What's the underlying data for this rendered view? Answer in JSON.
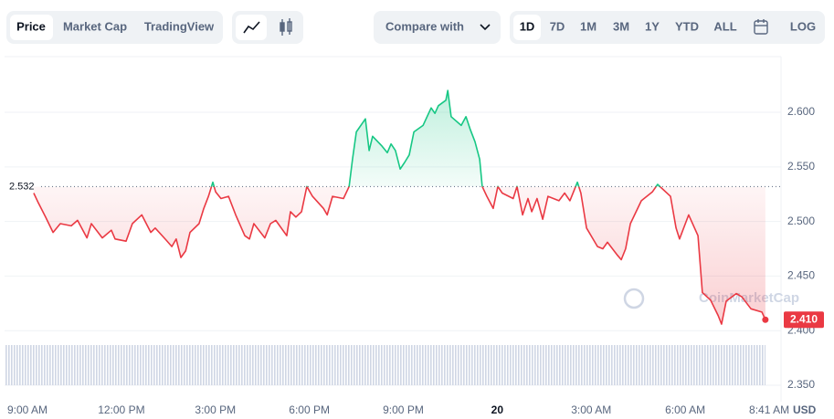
{
  "toolbar": {
    "view_tabs": [
      "Price",
      "Market Cap",
      "TradingView"
    ],
    "compare": "Compare with",
    "ranges": [
      "1D",
      "7D",
      "1M",
      "3M",
      "1Y",
      "YTD",
      "ALL"
    ],
    "log": "LOG"
  },
  "chart_data": {
    "type": "line",
    "watermark": "CoinMarketCap",
    "y_unit": "USD",
    "x": [
      9.2,
      9.35,
      9.58,
      9.82,
      10.05,
      10.4,
      10.6,
      10.9,
      11.04,
      11.39,
      11.68,
      11.8,
      12.15,
      12.35,
      12.65,
      12.94,
      13.08,
      13.43,
      13.61,
      13.75,
      13.9,
      14.05,
      14.19,
      14.48,
      14.63,
      14.78,
      14.92,
      15.01,
      15.18,
      15.42,
      15.65,
      15.94,
      16.09,
      16.23,
      16.58,
      16.76,
      16.93,
      17.28,
      17.4,
      17.57,
      17.75,
      17.92,
      18.1,
      18.45,
      18.57,
      18.74,
      19.09,
      19.27,
      19.38,
      19.5,
      19.79,
      19.91,
      20.02,
      20.32,
      20.49,
      20.61,
      20.75,
      20.9,
      21.04,
      21.19,
      21.34,
      21.63,
      21.89,
      22.01,
      22.12,
      22.36,
      22.42,
      22.53,
      22.85,
      23.0,
      23.14,
      23.29,
      23.44,
      23.52,
      23.67,
      23.87,
      24.02,
      24.16,
      24.51,
      24.63,
      24.81,
      24.98,
      25.1,
      25.27,
      25.45,
      25.62,
      25.97,
      26.15,
      26.32,
      26.56,
      26.67,
      26.85,
      27.2,
      27.37,
      27.52,
      27.84,
      27.96,
      28.1,
      28.25,
      28.6,
      28.95,
      29.12,
      29.53,
      29.71,
      29.82,
      30.11,
      30.41,
      30.55,
      30.81,
      31.05,
      31.16,
      31.31,
      31.63,
      31.81,
      32.1,
      32.45,
      32.56
    ],
    "values": [
      2.526,
      2.517,
      2.504,
      2.49,
      2.498,
      2.496,
      2.501,
      2.485,
      2.498,
      2.485,
      2.492,
      2.484,
      2.482,
      2.498,
      2.506,
      2.49,
      2.494,
      2.483,
      2.477,
      2.484,
      2.467,
      2.473,
      2.49,
      2.498,
      2.512,
      2.523,
      2.536,
      2.527,
      2.521,
      2.523,
      2.506,
      2.487,
      2.484,
      2.498,
      2.485,
      2.498,
      2.501,
      2.487,
      2.509,
      2.504,
      2.509,
      2.532,
      2.523,
      2.512,
      2.506,
      2.523,
      2.521,
      2.532,
      2.557,
      2.582,
      2.594,
      2.565,
      2.578,
      2.569,
      2.563,
      2.571,
      2.565,
      2.548,
      2.554,
      2.561,
      2.582,
      2.588,
      2.604,
      2.599,
      2.606,
      2.611,
      2.62,
      2.596,
      2.588,
      2.596,
      2.584,
      2.573,
      2.557,
      2.532,
      2.523,
      2.512,
      2.532,
      2.526,
      2.521,
      2.532,
      2.506,
      2.521,
      2.509,
      2.521,
      2.502,
      2.523,
      2.519,
      2.526,
      2.519,
      2.536,
      2.526,
      2.494,
      2.477,
      2.475,
      2.481,
      2.469,
      2.465,
      2.475,
      2.498,
      2.519,
      2.527,
      2.534,
      2.523,
      2.494,
      2.484,
      2.506,
      2.487,
      2.435,
      2.428,
      2.414,
      2.406,
      2.427,
      2.434,
      2.431,
      2.42,
      2.417,
      2.41
    ],
    "last_value_label": "2.410",
    "reference_line": 2.532,
    "up_color": "#16c784",
    "down_color": "#ea3943",
    "xlim": [
      8.27,
      33.06
    ],
    "xticks": [
      {
        "value": 9,
        "label": "9:00 AM"
      },
      {
        "value": 12,
        "label": "12:00 PM"
      },
      {
        "value": 15,
        "label": "3:00 PM"
      },
      {
        "value": 18,
        "label": "6:00 PM"
      },
      {
        "value": 21,
        "label": "9:00 PM"
      },
      {
        "value": 24,
        "label": "20"
      },
      {
        "value": 27,
        "label": "3:00 AM"
      },
      {
        "value": 30,
        "label": "6:00 AM"
      },
      {
        "value": 32.683,
        "label": "8:41 AM"
      }
    ],
    "ylim": [
      2.335,
      2.651
    ],
    "yticks": [
      {
        "value": 2.35,
        "label": "2.350"
      },
      {
        "value": 2.4,
        "label": "2.400"
      },
      {
        "value": 2.45,
        "label": "2.450"
      },
      {
        "value": 2.5,
        "label": "2.500"
      },
      {
        "value": 2.55,
        "label": "2.550"
      },
      {
        "value": 2.6,
        "label": "2.600"
      }
    ],
    "grid": true
  }
}
